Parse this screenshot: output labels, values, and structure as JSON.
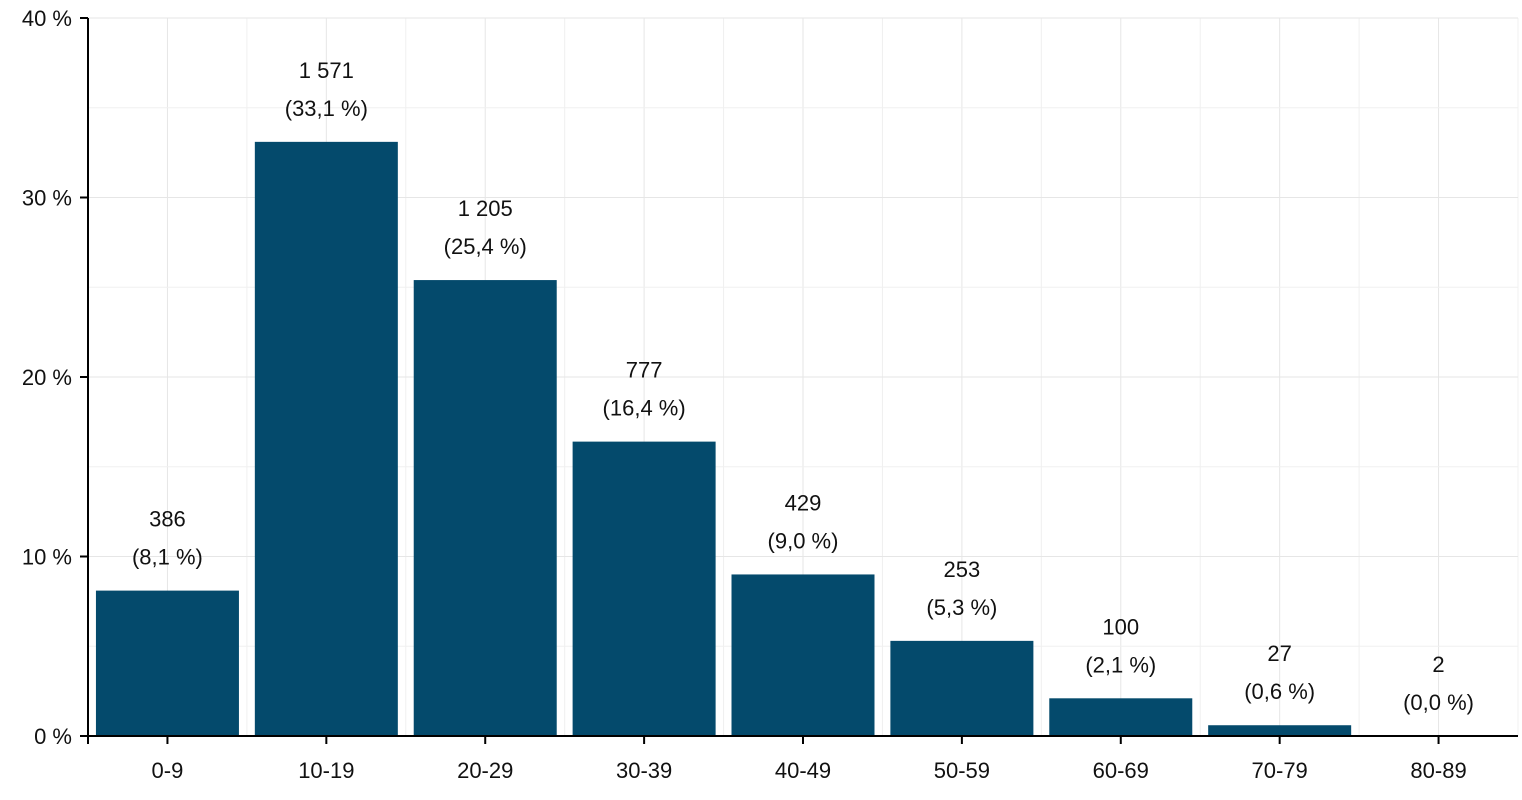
{
  "chart_data": {
    "type": "bar",
    "title": "",
    "xlabel": "",
    "ylabel": "",
    "categories": [
      "0-9",
      "10-19",
      "20-29",
      "30-39",
      "40-49",
      "50-59",
      "60-69",
      "70-79",
      "80-89"
    ],
    "series": [
      {
        "values": [
          8.1,
          33.1,
          25.4,
          16.4,
          9.0,
          5.3,
          2.1,
          0.6,
          0.0
        ],
        "counts": [
          "386",
          "1 571",
          "1 205",
          "777",
          "429",
          "253",
          "100",
          "27",
          "2"
        ],
        "percent_labels": [
          "(8,1 %)",
          "(33,1 %)",
          "(25,4 %)",
          "(16,4 %)",
          "(9,0 %)",
          "(5,3 %)",
          "(2,1 %)",
          "(0,6 %)",
          "(0,0 %)"
        ],
        "color": "#044a6c"
      }
    ],
    "ylim": [
      0,
      40
    ],
    "yticks": [
      0,
      10,
      20,
      30,
      40
    ],
    "ytick_labels": [
      "0 %",
      "10 %",
      "20 %",
      "30 %",
      "40 %"
    ],
    "grid": true,
    "legend": "none"
  }
}
